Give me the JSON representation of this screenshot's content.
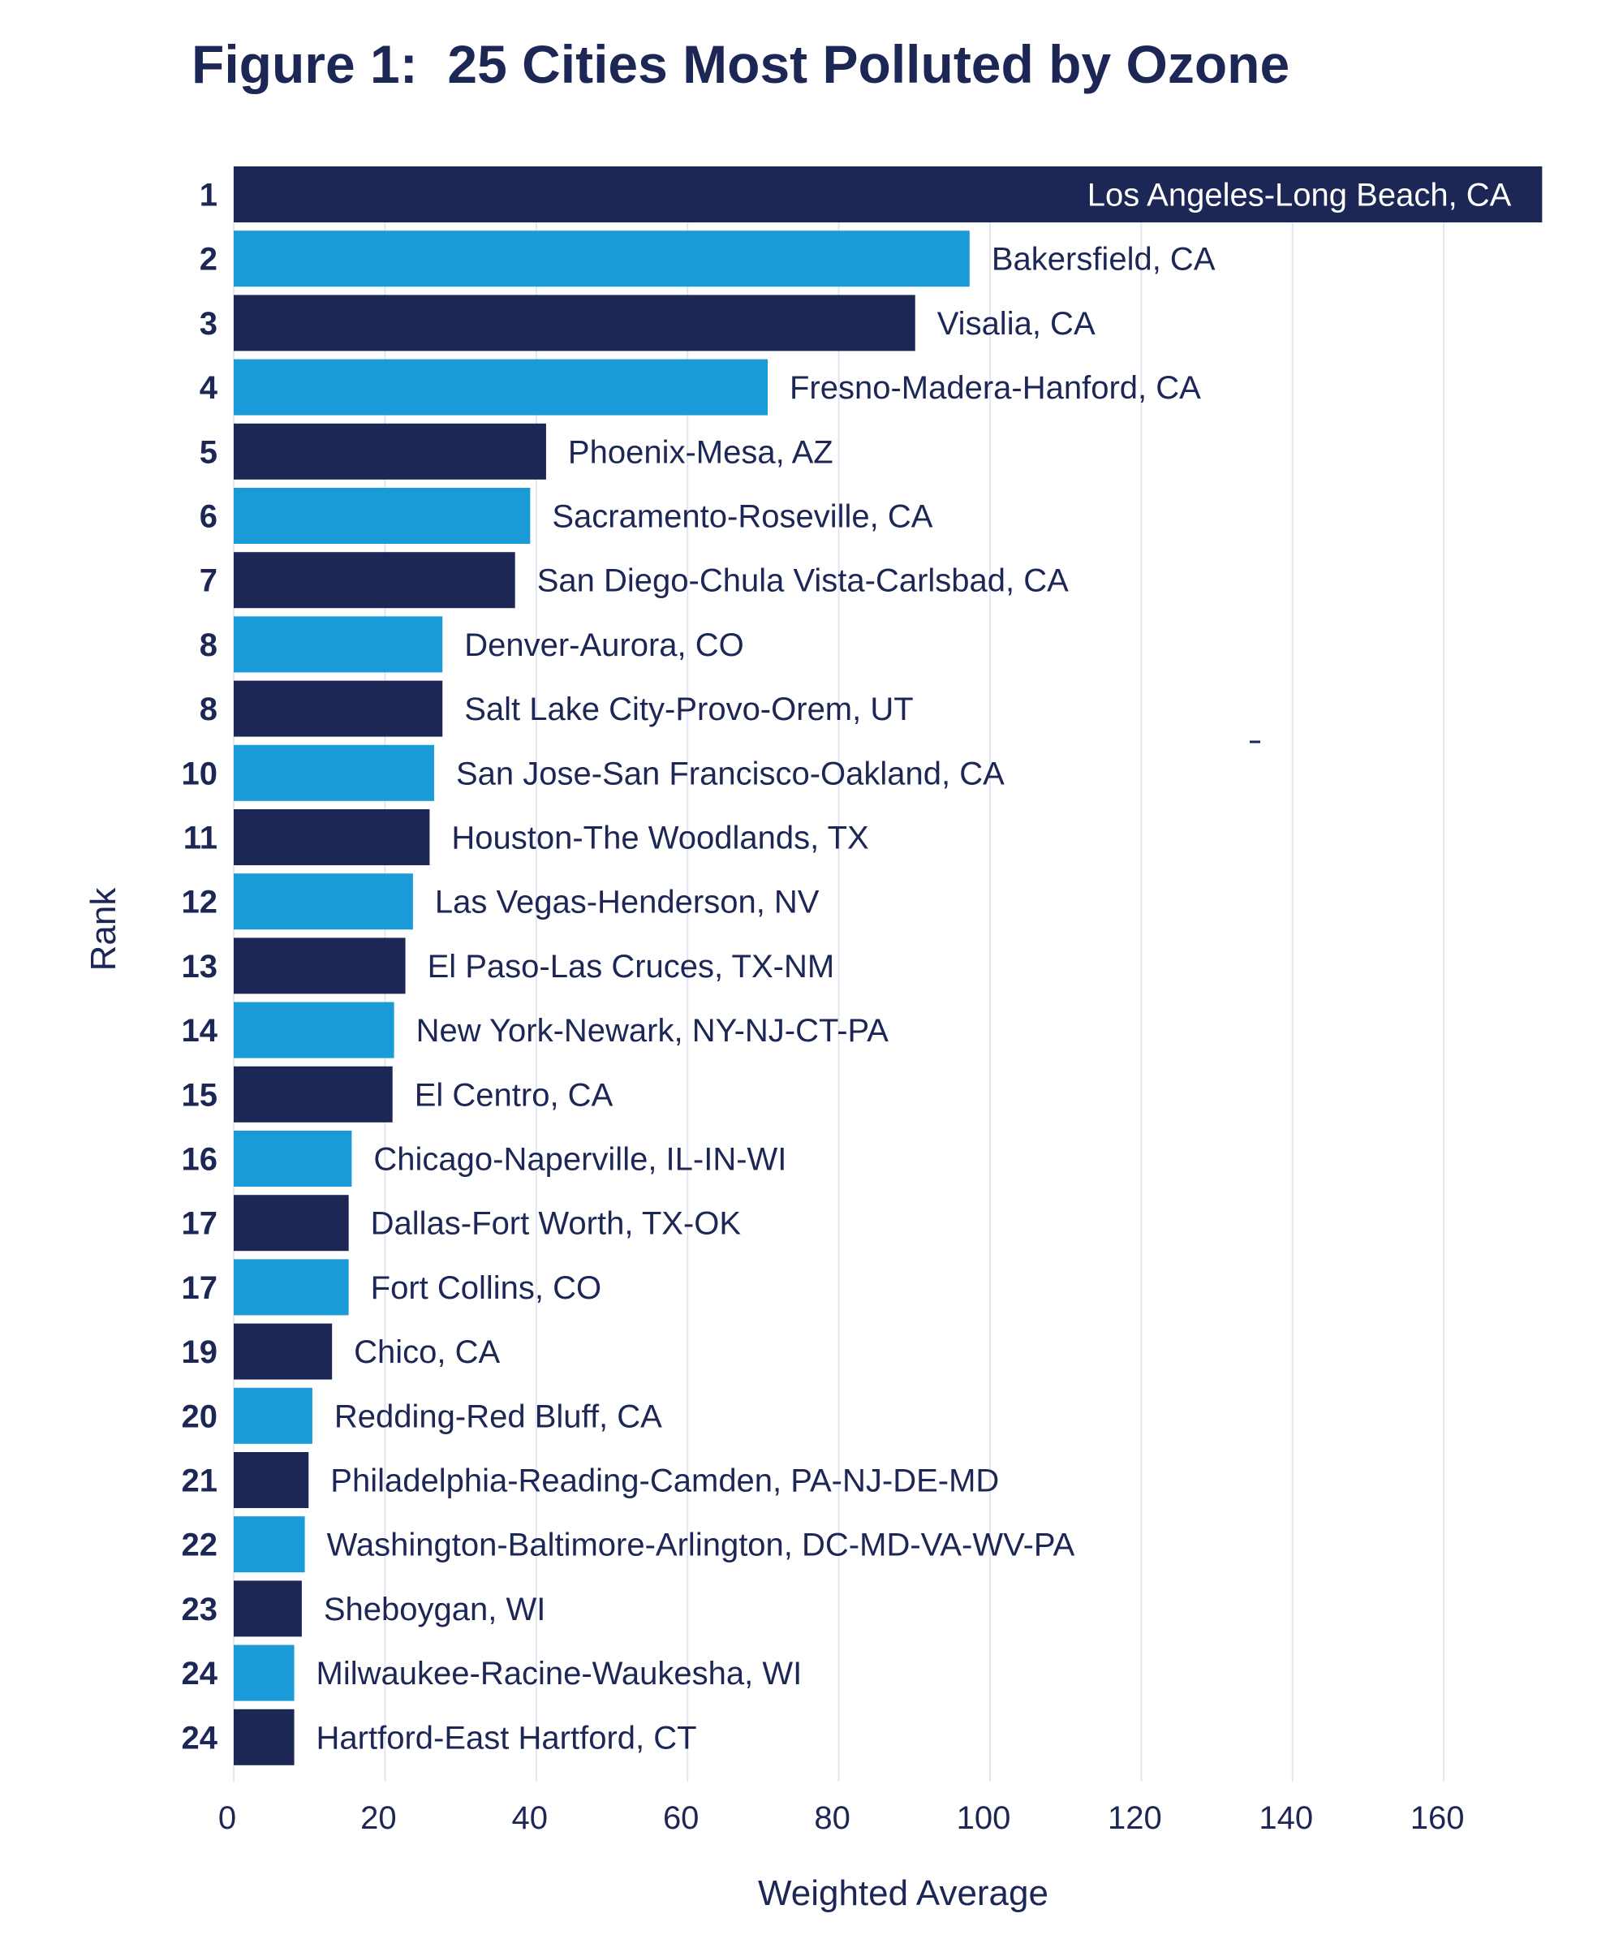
{
  "chart_data": {
    "type": "bar",
    "orientation": "horizontal",
    "title": "Figure 1:  25 Cities Most Polluted by Ozone",
    "xlabel": "Weighted Average",
    "ylabel": "Rank",
    "xlim": [
      0,
      173
    ],
    "xticks": [
      0,
      20,
      40,
      60,
      80,
      100,
      120,
      140,
      160
    ],
    "xtick_labels": [
      "0",
      "20",
      "40",
      "60",
      "80",
      "100",
      "120",
      "140",
      "160"
    ],
    "grid": "vertical",
    "legend": "none",
    "colors": {
      "dark": "#1d2756",
      "light": "#1a9ad6",
      "inside_label": "#ffffff"
    },
    "annotation_mark": "-",
    "categories": [
      {
        "rank": "1",
        "city": "Los Angeles-Long Beach, CA",
        "value": 173,
        "color": "dark",
        "label_inside": true
      },
      {
        "rank": "2",
        "city": "Bakersfield, CA",
        "value": 97.3,
        "color": "light"
      },
      {
        "rank": "3",
        "city": "Visalia, CA",
        "value": 90.1,
        "color": "dark"
      },
      {
        "rank": "4",
        "city": "Fresno-Madera-Hanford, CA",
        "value": 70.6,
        "color": "light"
      },
      {
        "rank": "5",
        "city": "Phoenix-Mesa, AZ",
        "value": 41.3,
        "color": "dark"
      },
      {
        "rank": "6",
        "city": "Sacramento-Roseville, CA",
        "value": 39.2,
        "color": "light"
      },
      {
        "rank": "7",
        "city": "San Diego-Chula Vista-Carlsbad, CA",
        "value": 37.2,
        "color": "dark"
      },
      {
        "rank": "8",
        "city": "Denver-Aurora, CO",
        "value": 27.6,
        "color": "light"
      },
      {
        "rank": "8",
        "city": "Salt Lake City-Provo-Orem, UT",
        "value": 27.6,
        "color": "dark"
      },
      {
        "rank": "10",
        "city": "San Jose-San Francisco-Oakland, CA",
        "value": 26.5,
        "color": "light"
      },
      {
        "rank": "11",
        "city": "Houston-The Woodlands, TX",
        "value": 25.9,
        "color": "dark"
      },
      {
        "rank": "12",
        "city": "Las Vegas-Henderson, NV",
        "value": 23.7,
        "color": "light"
      },
      {
        "rank": "13",
        "city": "El Paso-Las Cruces, TX-NM",
        "value": 22.7,
        "color": "dark"
      },
      {
        "rank": "14",
        "city": "New York-Newark, NY-NJ-CT-PA",
        "value": 21.2,
        "color": "light"
      },
      {
        "rank": "15",
        "city": "El Centro, CA",
        "value": 21.0,
        "color": "dark"
      },
      {
        "rank": "16",
        "city": "Chicago-Naperville, IL-IN-WI",
        "value": 15.6,
        "color": "light"
      },
      {
        "rank": "17",
        "city": "Dallas-Fort Worth, TX-OK",
        "value": 15.2,
        "color": "dark"
      },
      {
        "rank": "17",
        "city": "Fort Collins, CO",
        "value": 15.2,
        "color": "light"
      },
      {
        "rank": "19",
        "city": "Chico, CA",
        "value": 13.0,
        "color": "dark"
      },
      {
        "rank": "20",
        "city": "Redding-Red Bluff, CA",
        "value": 10.4,
        "color": "light"
      },
      {
        "rank": "21",
        "city": "Philadelphia-Reading-Camden, PA-NJ-DE-MD",
        "value": 9.9,
        "color": "dark"
      },
      {
        "rank": "22",
        "city": "Washington-Baltimore-Arlington, DC-MD-VA-WV-PA",
        "value": 9.4,
        "color": "light"
      },
      {
        "rank": "23",
        "city": "Sheboygan, WI",
        "value": 9.0,
        "color": "dark"
      },
      {
        "rank": "24",
        "city": "Milwaukee-Racine-Waukesha, WI",
        "value": 8.0,
        "color": "light"
      },
      {
        "rank": "24",
        "city": "Hartford-East Hartford, CT",
        "value": 8.0,
        "color": "dark"
      }
    ]
  }
}
